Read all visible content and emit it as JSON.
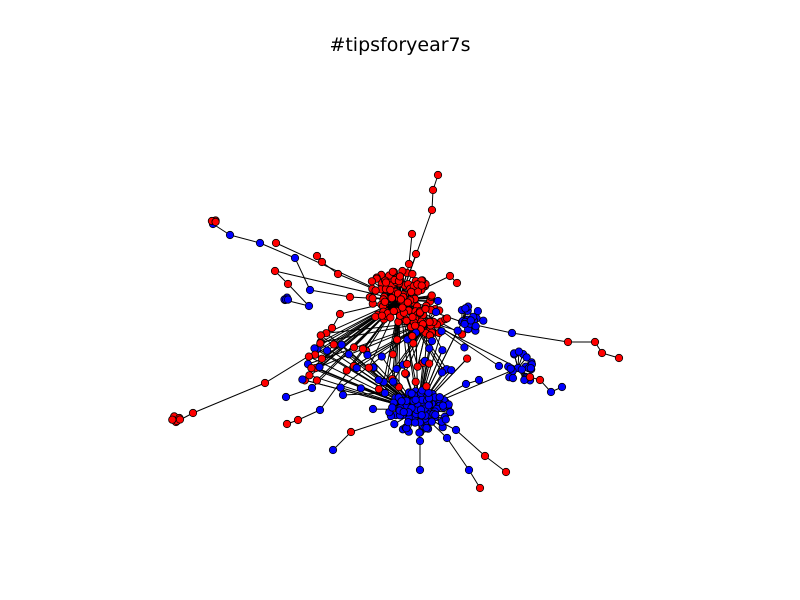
{
  "figure": {
    "title": "#tipsforyear7s"
  },
  "graph": {
    "node_colors": {
      "red": "#ff0000",
      "blue": "#0000ff",
      "outline": "#000000"
    },
    "edge_color": "#000000"
  }
}
